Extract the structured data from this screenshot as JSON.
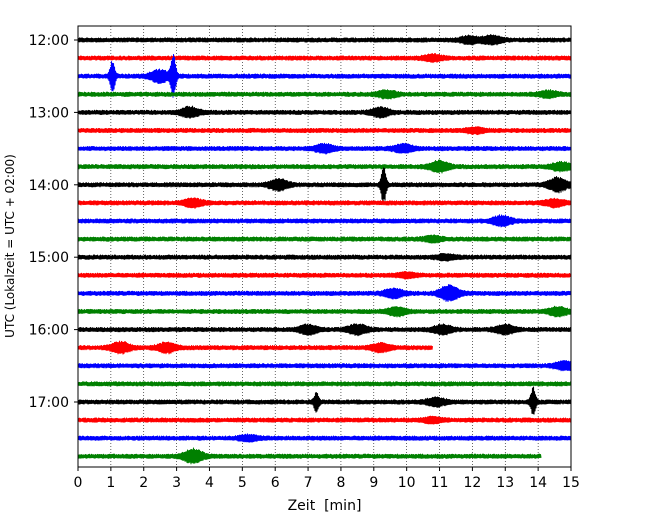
{
  "chart_data": {
    "type": "line",
    "title": "",
    "xlabel": "Zeit  [min]",
    "ylabel": "UTC (Lokalzeit = UTC + 02:00)",
    "xlim": [
      0,
      15
    ],
    "x_ticks": [
      0,
      1,
      2,
      3,
      4,
      5,
      6,
      7,
      8,
      9,
      10,
      11,
      12,
      13,
      14,
      15
    ],
    "y_tick_labels": [
      "12:00",
      "13:00",
      "14:00",
      "15:00",
      "16:00",
      "17:00"
    ],
    "trace_interval_minutes": 15,
    "grid": "vertical dotted",
    "trace_colors": [
      "#000000",
      "#ff0000",
      "#0000ff",
      "#008000"
    ],
    "series": [
      {
        "start": "12:00",
        "color": "#000000",
        "end_min": 15,
        "events": [
          {
            "t": 11.9,
            "amp": 0.4
          },
          {
            "t": 12.6,
            "amp": 0.45
          }
        ]
      },
      {
        "start": "12:15",
        "color": "#ff0000",
        "end_min": 15,
        "events": [
          {
            "t": 10.8,
            "amp": 0.35
          }
        ]
      },
      {
        "start": "12:30",
        "color": "#0000ff",
        "end_min": 15,
        "events": [
          {
            "t": 1.05,
            "amp": 1.9
          },
          {
            "t": 2.5,
            "amp": 0.7
          },
          {
            "t": 2.9,
            "amp": 2.5
          }
        ]
      },
      {
        "start": "12:45",
        "color": "#008000",
        "end_min": 15,
        "events": [
          {
            "t": 9.4,
            "amp": 0.4
          },
          {
            "t": 14.3,
            "amp": 0.35
          }
        ]
      },
      {
        "start": "13:00",
        "color": "#000000",
        "end_min": 15,
        "events": [
          {
            "t": 3.4,
            "amp": 0.55
          },
          {
            "t": 9.2,
            "amp": 0.5
          }
        ]
      },
      {
        "start": "13:15",
        "color": "#ff0000",
        "end_min": 15,
        "events": [
          {
            "t": 12.1,
            "amp": 0.3
          }
        ]
      },
      {
        "start": "13:30",
        "color": "#0000ff",
        "end_min": 15,
        "events": [
          {
            "t": 7.5,
            "amp": 0.45
          },
          {
            "t": 9.9,
            "amp": 0.45
          }
        ]
      },
      {
        "start": "13:45",
        "color": "#008000",
        "end_min": 15,
        "events": [
          {
            "t": 11.0,
            "amp": 0.6
          },
          {
            "t": 14.7,
            "amp": 0.45
          }
        ]
      },
      {
        "start": "14:00",
        "color": "#000000",
        "end_min": 15,
        "events": [
          {
            "t": 6.1,
            "amp": 0.6
          },
          {
            "t": 9.3,
            "amp": 2.2
          },
          {
            "t": 14.6,
            "amp": 0.8
          }
        ]
      },
      {
        "start": "14:15",
        "color": "#ff0000",
        "end_min": 15,
        "events": [
          {
            "t": 3.5,
            "amp": 0.45
          },
          {
            "t": 14.5,
            "amp": 0.4
          }
        ]
      },
      {
        "start": "14:30",
        "color": "#0000ff",
        "end_min": 15,
        "events": [
          {
            "t": 12.9,
            "amp": 0.55
          }
        ]
      },
      {
        "start": "14:45",
        "color": "#008000",
        "end_min": 15,
        "events": [
          {
            "t": 10.8,
            "amp": 0.3
          }
        ]
      },
      {
        "start": "15:00",
        "color": "#000000",
        "end_min": 15,
        "events": [
          {
            "t": 11.2,
            "amp": 0.3
          }
        ]
      },
      {
        "start": "15:15",
        "color": "#ff0000",
        "end_min": 15,
        "events": [
          {
            "t": 10.0,
            "amp": 0.25
          }
        ]
      },
      {
        "start": "15:30",
        "color": "#0000ff",
        "end_min": 15,
        "events": [
          {
            "t": 9.6,
            "amp": 0.5
          },
          {
            "t": 11.3,
            "amp": 0.9
          }
        ]
      },
      {
        "start": "15:45",
        "color": "#008000",
        "end_min": 15,
        "events": [
          {
            "t": 9.7,
            "amp": 0.45
          },
          {
            "t": 14.6,
            "amp": 0.45
          }
        ]
      },
      {
        "start": "16:00",
        "color": "#000000",
        "end_min": 15,
        "events": [
          {
            "t": 7.0,
            "amp": 0.5
          },
          {
            "t": 8.5,
            "amp": 0.55
          },
          {
            "t": 11.1,
            "amp": 0.5
          },
          {
            "t": 13.0,
            "amp": 0.5
          }
        ]
      },
      {
        "start": "16:15",
        "color": "#ff0000",
        "end_min": 10.8,
        "events": [
          {
            "t": 1.3,
            "amp": 0.6
          },
          {
            "t": 2.7,
            "amp": 0.55
          },
          {
            "t": 9.2,
            "amp": 0.45
          }
        ]
      },
      {
        "start": "16:30",
        "color": "#0000ff",
        "end_min": 15,
        "events": [
          {
            "t": 14.8,
            "amp": 0.45
          }
        ]
      },
      {
        "start": "16:45",
        "color": "#008000",
        "end_min": 15,
        "events": []
      },
      {
        "start": "17:00",
        "color": "#000000",
        "end_min": 15,
        "events": [
          {
            "t": 7.25,
            "amp": 1.1
          },
          {
            "t": 10.9,
            "amp": 0.45
          },
          {
            "t": 13.85,
            "amp": 1.7
          }
        ]
      },
      {
        "start": "17:15",
        "color": "#ff0000",
        "end_min": 15,
        "events": [
          {
            "t": 10.8,
            "amp": 0.3
          }
        ]
      },
      {
        "start": "17:30",
        "color": "#0000ff",
        "end_min": 15,
        "events": [
          {
            "t": 5.2,
            "amp": 0.3
          }
        ]
      },
      {
        "start": "17:45",
        "color": "#008000",
        "end_min": 14.1,
        "events": [
          {
            "t": 3.5,
            "amp": 0.8
          }
        ]
      }
    ]
  }
}
